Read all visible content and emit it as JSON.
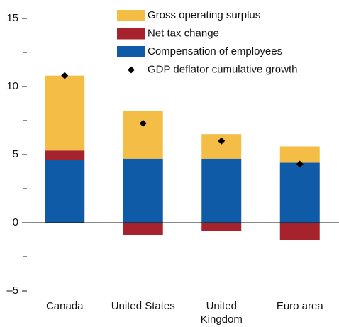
{
  "chart_data": {
    "type": "bar",
    "stacked": true,
    "categories": [
      "Canada",
      "United States",
      "United Kingdom",
      "Euro area"
    ],
    "series": [
      {
        "name": "Compensation of employees",
        "color": "#0f5ba7",
        "values": [
          4.6,
          4.7,
          4.7,
          4.4
        ]
      },
      {
        "name": "Net tax change",
        "color": "#a6232e",
        "values": [
          0.7,
          -0.9,
          -0.6,
          -1.3
        ]
      },
      {
        "name": "Gross operating surplus",
        "color": "#f4bd45",
        "values": [
          5.5,
          3.5,
          1.8,
          1.2
        ]
      },
      {
        "name": "GDP deflator cumulative growth",
        "color": "#000000",
        "type": "scatter",
        "values": [
          10.8,
          7.3,
          6.0,
          4.3
        ]
      }
    ],
    "ylim": [
      -5,
      15
    ],
    "yticks": [
      15,
      10,
      5,
      0,
      {
        "value": -5,
        "label": "–5"
      }
    ],
    "minor_yticks": [
      12.5,
      7.5,
      2.5,
      -2.5
    ]
  }
}
